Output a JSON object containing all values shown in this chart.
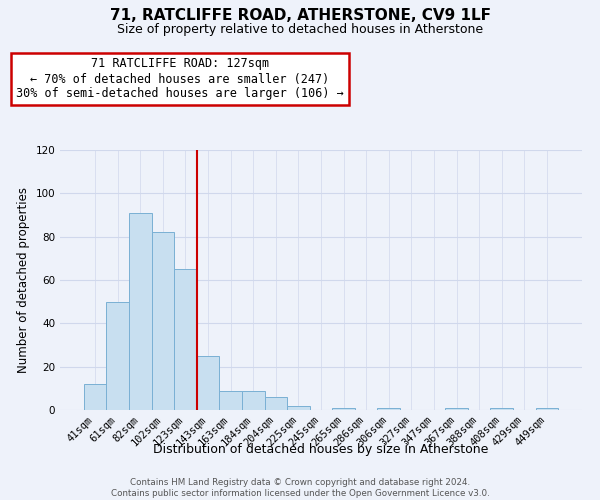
{
  "title": "71, RATCLIFFE ROAD, ATHERSTONE, CV9 1LF",
  "subtitle": "Size of property relative to detached houses in Atherstone",
  "xlabel": "Distribution of detached houses by size in Atherstone",
  "ylabel": "Number of detached properties",
  "bar_labels": [
    "41sqm",
    "61sqm",
    "82sqm",
    "102sqm",
    "123sqm",
    "143sqm",
    "163sqm",
    "184sqm",
    "204sqm",
    "225sqm",
    "245sqm",
    "265sqm",
    "286sqm",
    "306sqm",
    "327sqm",
    "347sqm",
    "367sqm",
    "388sqm",
    "408sqm",
    "429sqm",
    "449sqm"
  ],
  "bar_heights": [
    12,
    50,
    91,
    82,
    65,
    25,
    9,
    9,
    6,
    2,
    0,
    1,
    0,
    1,
    0,
    0,
    1,
    0,
    1,
    0,
    1
  ],
  "bar_color": "#c8dff0",
  "bar_edge_color": "#7ab0d4",
  "vline_color": "#cc0000",
  "annotation_title": "71 RATCLIFFE ROAD: 127sqm",
  "annotation_line1": "← 70% of detached houses are smaller (247)",
  "annotation_line2": "30% of semi-detached houses are larger (106) →",
  "annotation_box_color": "white",
  "annotation_box_edge": "#cc0000",
  "ylim": [
    0,
    120
  ],
  "yticks": [
    0,
    20,
    40,
    60,
    80,
    100,
    120
  ],
  "footer_line1": "Contains HM Land Registry data © Crown copyright and database right 2024.",
  "footer_line2": "Contains public sector information licensed under the Open Government Licence v3.0.",
  "background_color": "#eef2fa",
  "grid_color": "#d0d8ec"
}
